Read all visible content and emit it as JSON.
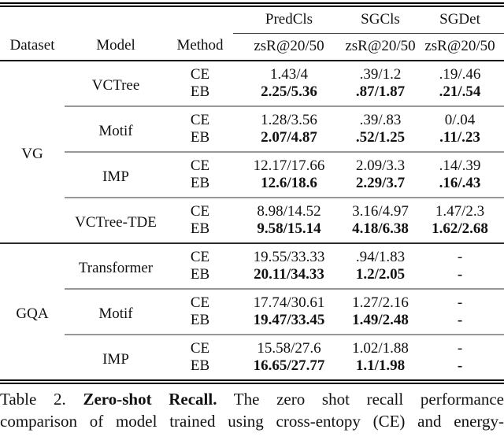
{
  "table": {
    "header": {
      "dataset": "Dataset",
      "model": "Model",
      "method": "Method",
      "task_groups": [
        "PredCls",
        "SGCls",
        "SGDet"
      ],
      "metrics": [
        "zsR@20/50",
        "zsR@20/50",
        "zsR@20/50"
      ]
    },
    "sections": [
      {
        "dataset": "VG",
        "groups": [
          {
            "model": "VCTree",
            "rows": [
              {
                "method": "CE",
                "predcls": "1.43/4",
                "sgcls": ".39/1.2",
                "sgdet": ".19/.46"
              },
              {
                "method": "EB",
                "predcls": "2.25/5.36",
                "sgcls": ".87/1.87",
                "sgdet": ".21/.54"
              }
            ]
          },
          {
            "model": "Motif",
            "rows": [
              {
                "method": "CE",
                "predcls": "1.28/3.56",
                "sgcls": ".39/.83",
                "sgdet": "0/.04"
              },
              {
                "method": "EB",
                "predcls": "2.07/4.87",
                "sgcls": ".52/1.25",
                "sgdet": ".11/.23"
              }
            ]
          },
          {
            "model": "IMP",
            "rows": [
              {
                "method": "CE",
                "predcls": "12.17/17.66",
                "sgcls": "2.09/3.3",
                "sgdet": ".14/.39"
              },
              {
                "method": "EB",
                "predcls": "12.6/18.6",
                "sgcls": "2.29/3.7",
                "sgdet": ".16/.43"
              }
            ]
          },
          {
            "model": "VCTree-TDE",
            "rows": [
              {
                "method": "CE",
                "predcls": "8.98/14.52",
                "sgcls": "3.16/4.97",
                "sgdet": "1.47/2.3"
              },
              {
                "method": "EB",
                "predcls": "9.58/15.14",
                "sgcls": "4.18/6.38",
                "sgdet": "1.62/2.68"
              }
            ]
          }
        ]
      },
      {
        "dataset": "GQA",
        "groups": [
          {
            "model": "Transformer",
            "rows": [
              {
                "method": "CE",
                "predcls": "19.55/33.33",
                "sgcls": ".94/1.83",
                "sgdet": "-"
              },
              {
                "method": "EB",
                "predcls": "20.11/34.33",
                "sgcls": "1.2/2.05",
                "sgdet": "-"
              }
            ]
          },
          {
            "model": "Motif",
            "rows": [
              {
                "method": "CE",
                "predcls": "17.74/30.61",
                "sgcls": "1.27/2.16",
                "sgdet": "-"
              },
              {
                "method": "EB",
                "predcls": "19.47/33.45",
                "sgcls": "1.49/2.48",
                "sgdet": "-"
              }
            ]
          },
          {
            "model": "IMP",
            "rows": [
              {
                "method": "CE",
                "predcls": "15.58/27.6",
                "sgcls": "1.02/1.88",
                "sgdet": "-"
              },
              {
                "method": "EB",
                "predcls": "16.65/27.77",
                "sgcls": "1.1/1.98",
                "sgdet": "-"
              }
            ]
          }
        ]
      }
    ]
  },
  "caption": {
    "line1_prefix": "Table 2.",
    "line1_bold": "Zero-shot Recall.",
    "line1_rest": "The zero shot recall performance",
    "line2": "comparison of model trained using cross-entopy (CE) and energy-"
  }
}
